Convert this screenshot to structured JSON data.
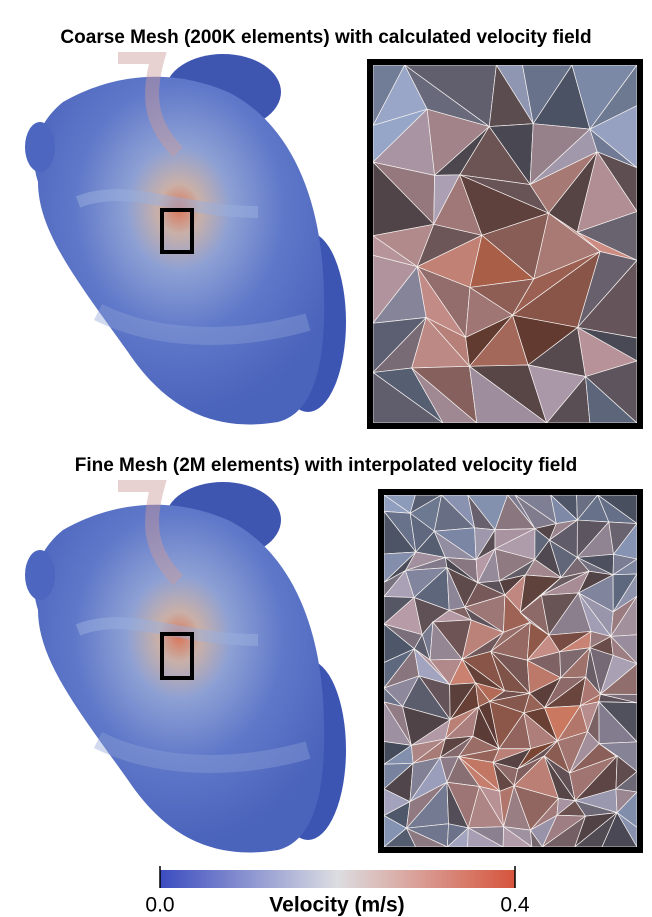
{
  "panels": [
    {
      "title": "Coarse Mesh (200K elements) with calculated velocity field"
    },
    {
      "title": "Fine Mesh (2M elements) with interpolated velocity field"
    }
  ],
  "colorbar": {
    "label": "Velocity (m/s)",
    "lim": [
      0,
      0.4
    ],
    "ticks": [
      {
        "value": 0,
        "label": "0.0"
      },
      {
        "value": 0.4,
        "label": "0.4"
      }
    ]
  }
}
